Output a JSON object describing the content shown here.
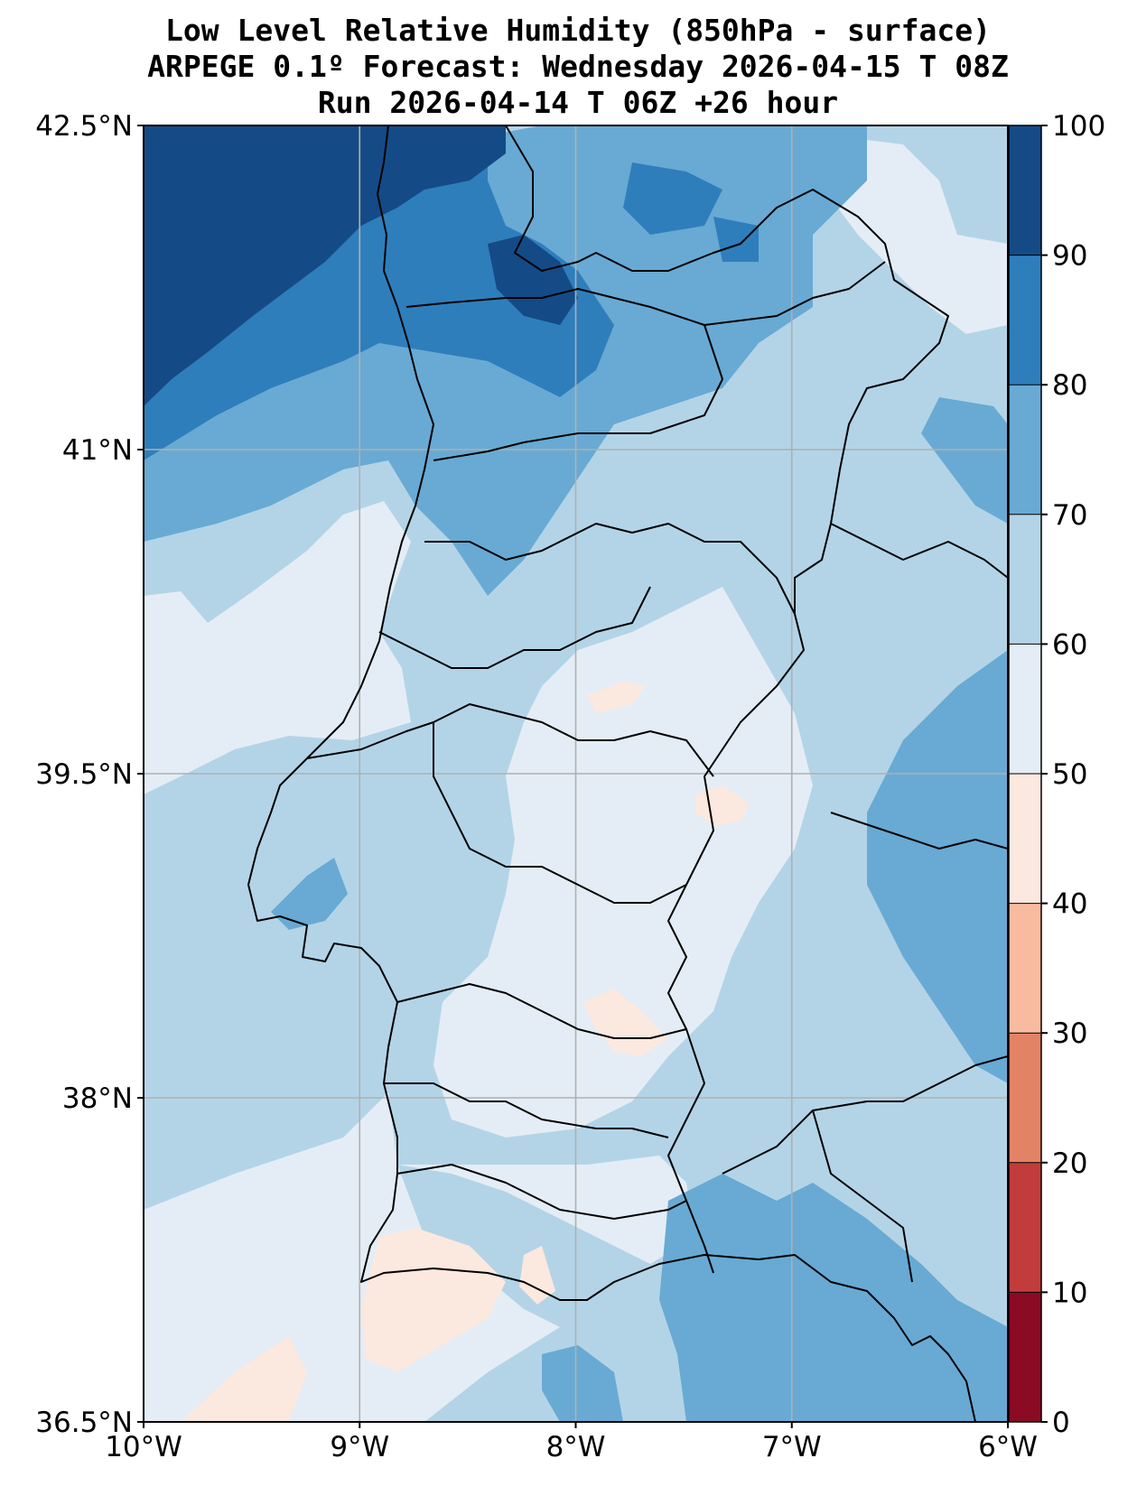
{
  "title": {
    "line1": "Low Level Relative Humidity (850hPa - surface)",
    "line2": "ARPEGE 0.1º Forecast: Wednesday 2026-04-15 T 08Z",
    "line3": "Run 2026-04-14 T 06Z +26 hour"
  },
  "map": {
    "lon_range": [
      -10,
      -6
    ],
    "lat_range": [
      36.5,
      42.5
    ],
    "lon_ticks": [
      {
        "value": -10,
        "label": "10°W"
      },
      {
        "value": -9,
        "label": "9°W"
      },
      {
        "value": -8,
        "label": "8°W"
      },
      {
        "value": -7,
        "label": "7°W"
      },
      {
        "value": -6,
        "label": "6°W"
      }
    ],
    "lat_ticks": [
      {
        "value": 42.5,
        "label": "42.5°N"
      },
      {
        "value": 41,
        "label": "41°N"
      },
      {
        "value": 39.5,
        "label": "39.5°N"
      },
      {
        "value": 38,
        "label": "38°N"
      },
      {
        "value": 36.5,
        "label": "36.5°N"
      }
    ]
  },
  "colorbar": {
    "levels": [
      {
        "from": 0,
        "to": 10,
        "color": "#8b0a24"
      },
      {
        "from": 10,
        "to": 20,
        "color": "#c33c3c"
      },
      {
        "from": 20,
        "to": 30,
        "color": "#e38366"
      },
      {
        "from": 30,
        "to": 40,
        "color": "#f9bb9f"
      },
      {
        "from": 40,
        "to": 50,
        "color": "#fbe8de"
      },
      {
        "from": 50,
        "to": 60,
        "color": "#e4edf5"
      },
      {
        "from": 60,
        "to": 70,
        "color": "#b3d4e7"
      },
      {
        "from": 70,
        "to": 80,
        "color": "#68aad3"
      },
      {
        "from": 80,
        "to": 90,
        "color": "#2f7ebc"
      },
      {
        "from": 90,
        "to": 100,
        "color": "#144b87"
      }
    ],
    "tick_labels": [
      "0",
      "10",
      "20",
      "30",
      "40",
      "50",
      "60",
      "70",
      "80",
      "90",
      "100"
    ]
  }
}
